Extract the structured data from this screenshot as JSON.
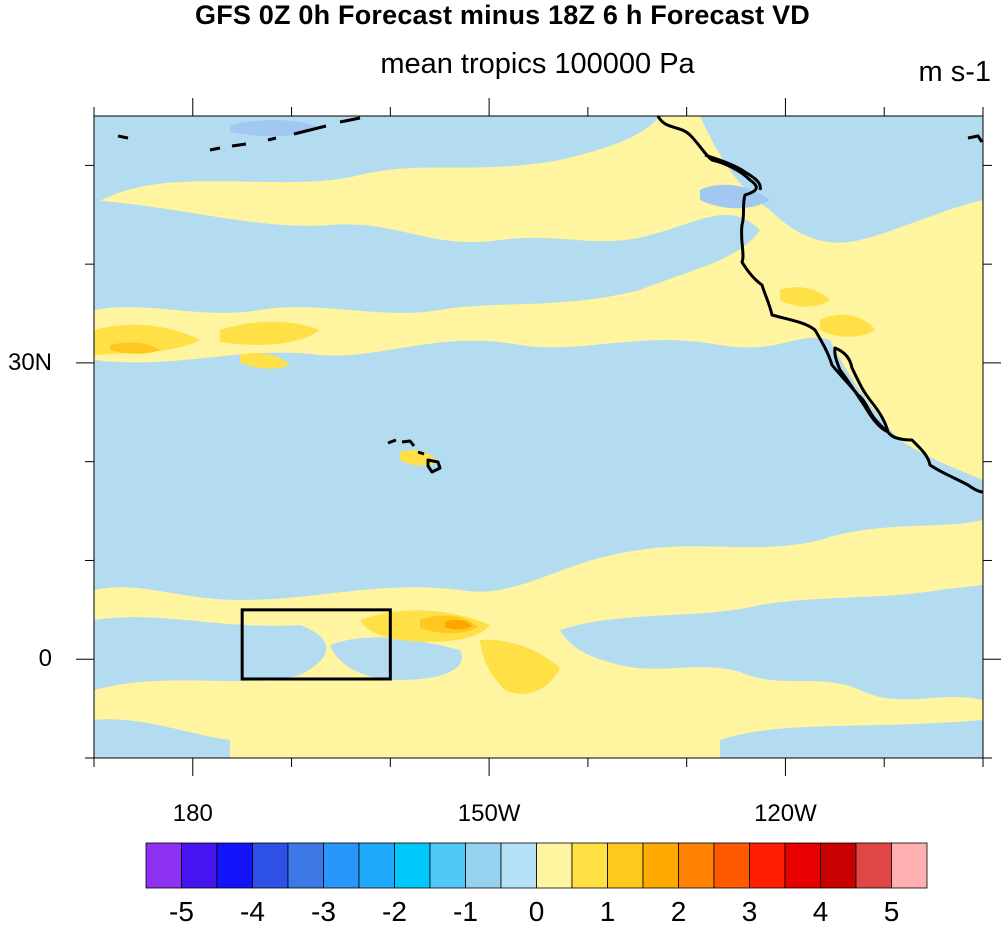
{
  "title": "GFS 0Z 0h Forecast minus 18Z 6 h Forecast VD",
  "subtitle": "mean tropics 100000 Pa",
  "units": "m s-1",
  "map": {
    "x_ticks": [
      {
        "label": "180",
        "lon": 180
      },
      {
        "label": "150W",
        "lon": 210
      },
      {
        "label": "120W",
        "lon": 240
      }
    ],
    "y_ticks": [
      {
        "label": "30N",
        "lat": 30
      },
      {
        "label": "0",
        "lat": 0
      }
    ],
    "lon_range": [
      170,
      260
    ],
    "lat_range": [
      -10,
      55
    ],
    "highlight_box": {
      "lon": [
        185,
        200
      ],
      "lat": [
        -2,
        5
      ]
    },
    "field_colors": {
      "negative": "#b4dcf0",
      "zero_plus": "#fff5a0",
      "positive": "#ffe046",
      "strong_positive": "#ffc81e",
      "strongest": "#ffa500",
      "strong_negative": "#a0c8f0"
    }
  },
  "colorbar": {
    "colors": [
      "#8c32f0",
      "#4614f0",
      "#1414fa",
      "#2d50e6",
      "#3c78e6",
      "#2896fa",
      "#1eaafa",
      "#00c8fa",
      "#50c8f5",
      "#96d2f0",
      "#b4e1f5",
      "#fff5a0",
      "#ffe146",
      "#ffc81e",
      "#ffaa00",
      "#ff8200",
      "#ff5a00",
      "#ff1e00",
      "#e60000",
      "#c80000",
      "#e14646",
      "#ffafaf"
    ],
    "labels": [
      "-5",
      "-4",
      "-3",
      "-2",
      "-1",
      "0",
      "1",
      "2",
      "3",
      "4",
      "5"
    ]
  }
}
